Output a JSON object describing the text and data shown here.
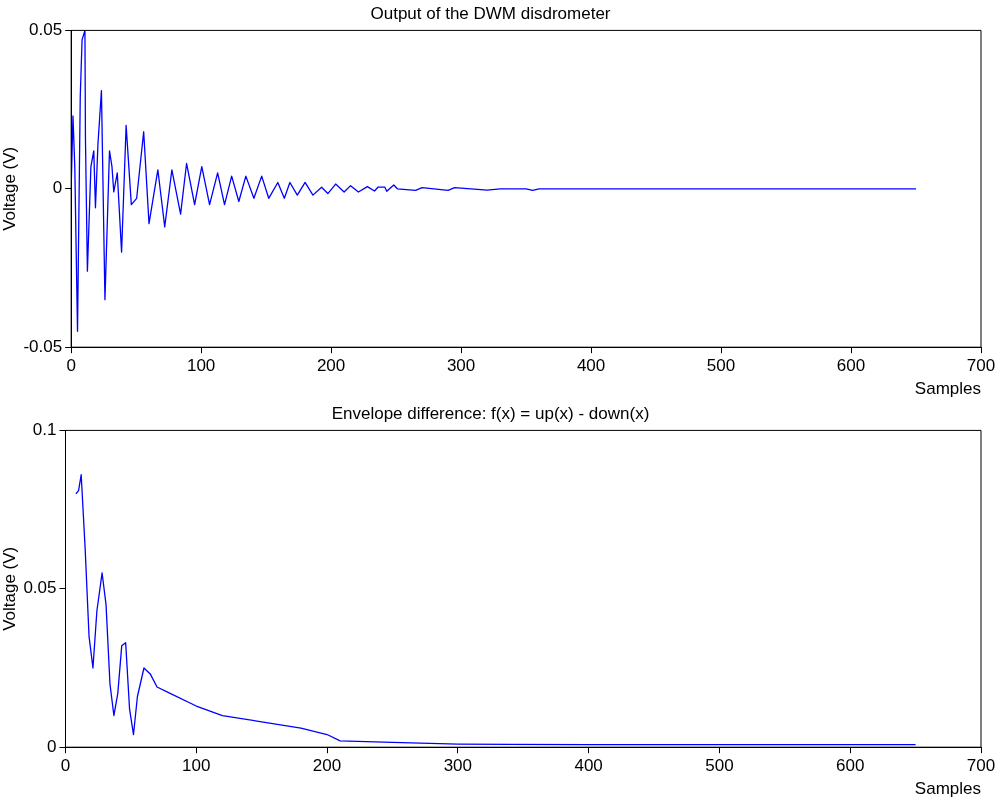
{
  "chart_data": [
    {
      "type": "line",
      "title": "Output of the DWM disdrometer",
      "xlabel": "Samples",
      "ylabel": "Voltage (V)",
      "xlim": [
        0,
        700
      ],
      "xticks": [
        0,
        100,
        200,
        300,
        400,
        500,
        600,
        700
      ],
      "ylim": [
        -0.05,
        0.05
      ],
      "yticks": [
        -0.05,
        0,
        0.05
      ],
      "grid": false,
      "legend": false,
      "marker": "none",
      "line_style": "solid",
      "series": [
        {
          "color": "#0000ff",
          "x": [
            0,
            1.4,
            2.8,
            4.9,
            7,
            8.4,
            10.6,
            11,
            12.5,
            15.2,
            17.4,
            18.7,
            20.6,
            23.3,
            26,
            29.5,
            31.4,
            32.8,
            35.5,
            38.8,
            42.3,
            46.3,
            50.4,
            55.8,
            59.9,
            66.7,
            72,
            77.5,
            84.2,
            88.8,
            95,
            100.5,
            106.5,
            112.7,
            118,
            123.5,
            129,
            134.4,
            140.6,
            146.6,
            152,
            159,
            164,
            168.3,
            174,
            180,
            186,
            192.7,
            197.5,
            203.5,
            210,
            215,
            221,
            227.9,
            233.4,
            236,
            241.4,
            242.8,
            248.2,
            251,
            265,
            270,
            290,
            295,
            320,
            330,
            350,
            355,
            360,
            400,
            500,
            650
          ],
          "values": [
            0,
            0.023,
            0.007,
            -0.045,
            0.029,
            0.047,
            0.05,
            0.016,
            -0.026,
            0.007,
            0.012,
            -0.006,
            0.014,
            0.031,
            -0.035,
            0.012,
            0.007,
            -0.001,
            0.005,
            -0.02,
            0.02,
            -0.005,
            -0.003,
            0.018,
            -0.011,
            0.006,
            -0.012,
            0.006,
            -0.008,
            0.008,
            -0.005,
            0.007,
            -0.005,
            0.005,
            -0.005,
            0.004,
            -0.004,
            0.004,
            -0.003,
            0.004,
            -0.003,
            0.002,
            -0.003,
            0.002,
            -0.002,
            0.002,
            -0.002,
            0.0005,
            -0.0015,
            0.0015,
            -0.001,
            0.001,
            -0.001,
            0.0007,
            -0.0007,
            0.0005,
            0.0005,
            -0.0008,
            0.0012,
            0,
            -0.0005,
            0.0004,
            -0.0005,
            0.0004,
            -0.0004,
            0,
            0,
            -0.0005,
            0,
            0,
            0,
            0
          ]
        }
      ]
    },
    {
      "type": "line",
      "title": "Envelope difference: f(x) = up(x) - down(x)",
      "xlabel": "Samples",
      "ylabel": "Voltage (V)",
      "xlim": [
        0,
        700
      ],
      "xticks": [
        0,
        100,
        200,
        300,
        400,
        500,
        600,
        700
      ],
      "ylim": [
        0,
        0.1
      ],
      "yticks": [
        0,
        0.05,
        0.1
      ],
      "grid": false,
      "legend": false,
      "marker": "none",
      "line_style": "solid",
      "series": [
        {
          "color": "#0000ff",
          "x": [
            8,
            10,
            12,
            15,
            18,
            21,
            24,
            28,
            31,
            34,
            37,
            40,
            43,
            46,
            49,
            52,
            55,
            60,
            65,
            70,
            80,
            100,
            120,
            150,
            180,
            200,
            210,
            250,
            300,
            400,
            500,
            650
          ],
          "values": [
            0.08,
            0.081,
            0.086,
            0.063,
            0.035,
            0.025,
            0.043,
            0.055,
            0.045,
            0.02,
            0.01,
            0.017,
            0.032,
            0.033,
            0.012,
            0.004,
            0.016,
            0.025,
            0.023,
            0.019,
            0.017,
            0.013,
            0.01,
            0.008,
            0.006,
            0.004,
            0.002,
            0.0015,
            0.001,
            0.0008,
            0.0008,
            0.0008
          ]
        }
      ]
    }
  ]
}
